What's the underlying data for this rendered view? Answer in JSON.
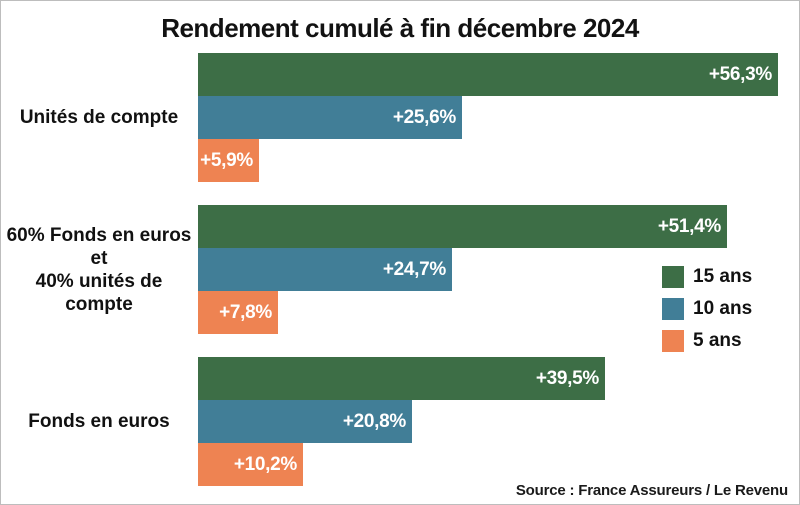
{
  "title": "Rendement cumulé à fin décembre 2024",
  "source": "Source : France Assureurs / Le Revenu",
  "legend": {
    "items": [
      {
        "label": "15 ans",
        "color": "#3d6e46"
      },
      {
        "label": "10 ans",
        "color": "#417e97"
      },
      {
        "label": "5 ans",
        "color": "#ee8352"
      }
    ]
  },
  "chart_data": {
    "type": "bar",
    "orientation": "horizontal",
    "title": "Rendement cumulé à fin décembre 2024",
    "categories": [
      "Unités de compte",
      "60% Fonds en euros\net\n40% unités de compte",
      "Fonds en euros"
    ],
    "series": [
      {
        "name": "15 ans",
        "color": "#3d6e46",
        "values": [
          56.3,
          51.4,
          39.5
        ],
        "labels": [
          "+56,3%",
          "+51,4%",
          "+39,5%"
        ]
      },
      {
        "name": "10 ans",
        "color": "#417e97",
        "values": [
          25.6,
          24.7,
          20.8
        ],
        "labels": [
          "+25,6%",
          "+24,7%",
          "+20,8%"
        ]
      },
      {
        "name": "5 ans",
        "color": "#ee8352",
        "values": [
          5.9,
          7.8,
          10.2
        ],
        "labels": [
          "+5,9%",
          "+7,8%",
          "+10,2%"
        ]
      }
    ],
    "xlim": [
      0,
      58
    ],
    "grid": false,
    "axes_visible": false,
    "legend_position": "middle-right",
    "value_labels": "inside-bar-end, white, bold, french decimal comma, % suffix"
  }
}
